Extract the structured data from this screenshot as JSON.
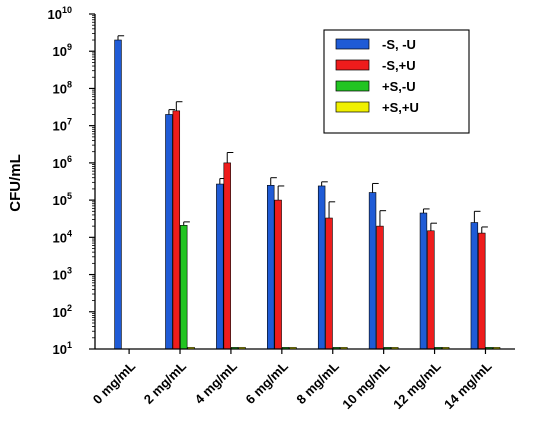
{
  "chart_data": {
    "type": "bar",
    "ylabel": "CFU/mL",
    "xlabel": "",
    "yscale": "log",
    "ylim": [
      10,
      10000000000
    ],
    "yticks": [
      {
        "base": "10",
        "exp": "1"
      },
      {
        "base": "10",
        "exp": "2"
      },
      {
        "base": "10",
        "exp": "3"
      },
      {
        "base": "10",
        "exp": "4"
      },
      {
        "base": "10",
        "exp": "5"
      },
      {
        "base": "10",
        "exp": "6"
      },
      {
        "base": "10",
        "exp": "7"
      },
      {
        "base": "10",
        "exp": "8"
      },
      {
        "base": "10",
        "exp": "9"
      },
      {
        "base": "10",
        "exp": "10"
      }
    ],
    "categories": [
      "0 mg/mL",
      "2 mg/mL",
      "4 mg/mL",
      "6 mg/mL",
      "8 mg/mL",
      "10 mg/mL",
      "12 mg/mL",
      "14 mg/mL"
    ],
    "legend_position": "top-right",
    "series": [
      {
        "name": "-S, -U",
        "color": "#1f5bd6",
        "values": [
          2000000000,
          20000000,
          270000,
          250000,
          240000,
          160000,
          45000,
          25000
        ],
        "errors": [
          2600000000,
          27000000,
          380000,
          400000,
          310000,
          280000,
          58000,
          50000
        ]
      },
      {
        "name": "-S,+U",
        "color": "#ee1c1c",
        "values": [
          null,
          25000000,
          1000000,
          100000,
          33000,
          20000,
          15000,
          13000
        ],
        "errors": [
          null,
          44000000,
          1900000,
          240000,
          90000,
          52000,
          24000,
          19000
        ]
      },
      {
        "name": "+S,-U",
        "color": "#22c422",
        "values": [
          null,
          21000,
          10,
          10,
          10,
          10,
          10,
          10
        ],
        "errors": [
          null,
          26000,
          null,
          null,
          null,
          null,
          null,
          null
        ]
      },
      {
        "name": "+S,+U",
        "color": "#f0f000",
        "values": [
          null,
          10,
          10,
          10,
          10,
          10,
          10,
          10
        ],
        "errors": [
          null,
          null,
          null,
          null,
          null,
          null,
          null,
          null
        ]
      }
    ]
  }
}
